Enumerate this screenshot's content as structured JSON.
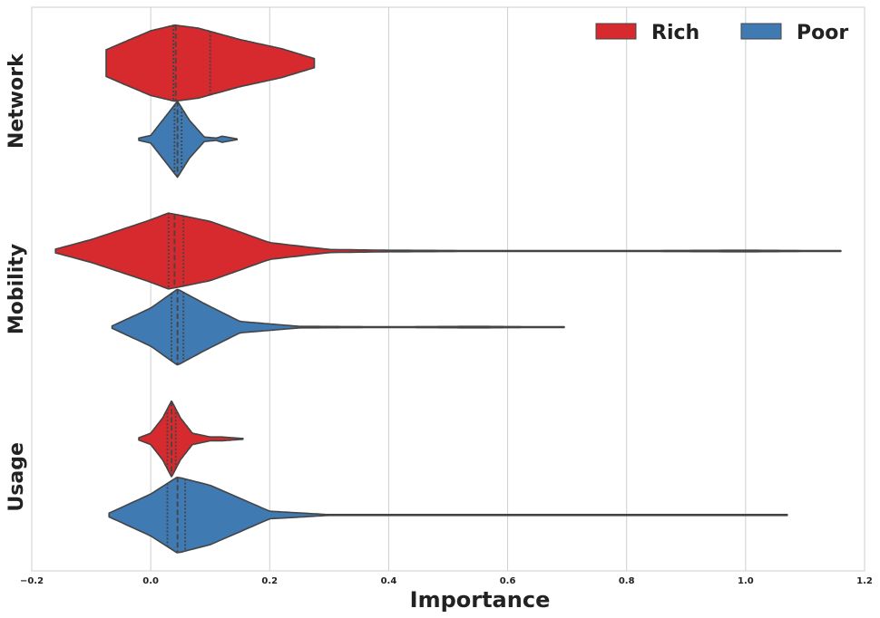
{
  "chart_data": {
    "type": "violin",
    "orientation": "horizontal",
    "xlabel": "Importance",
    "xlim": [
      -0.2,
      1.2
    ],
    "xticks": [
      -0.2,
      0.0,
      0.2,
      0.4,
      0.6,
      0.8,
      1.0,
      1.2
    ],
    "xtick_labels": [
      "−0.2",
      "0.0",
      "0.2",
      "0.4",
      "0.6",
      "0.8",
      "1.0",
      "1.2"
    ],
    "grid": "vertical",
    "legend_position": "top-right",
    "categories": [
      "Network",
      "Mobility",
      "Usage"
    ],
    "series": [
      {
        "name": "Rich",
        "color": "#d62a2e",
        "violins": [
          {
            "category": "Network",
            "min": -0.075,
            "max": 0.275,
            "q1": 0.038,
            "median": 0.042,
            "q3": 0.1,
            "profile": [
              [
                -0.075,
                0.35
              ],
              [
                -0.05,
                0.52
              ],
              [
                0.0,
                0.85
              ],
              [
                0.04,
                1.0
              ],
              [
                0.08,
                0.92
              ],
              [
                0.15,
                0.62
              ],
              [
                0.22,
                0.38
              ],
              [
                0.275,
                0.12
              ]
            ]
          },
          {
            "category": "Mobility",
            "min": -0.16,
            "max": 1.16,
            "q1": 0.03,
            "median": 0.04,
            "q3": 0.055,
            "profile": [
              [
                -0.16,
                0.05
              ],
              [
                -0.1,
                0.3
              ],
              [
                0.0,
                0.82
              ],
              [
                0.03,
                1.0
              ],
              [
                0.1,
                0.78
              ],
              [
                0.2,
                0.22
              ],
              [
                0.3,
                0.04
              ],
              [
                0.4,
                0.02
              ],
              [
                0.6,
                0.008
              ],
              [
                0.8,
                0.01
              ],
              [
                1.0,
                0.02
              ],
              [
                1.1,
                0.012
              ],
              [
                1.16,
                0.0
              ]
            ]
          },
          {
            "category": "Usage",
            "min": -0.02,
            "max": 0.155,
            "q1": 0.028,
            "median": 0.035,
            "q3": 0.042,
            "profile": [
              [
                -0.02,
                0.03
              ],
              [
                0.0,
                0.15
              ],
              [
                0.02,
                0.55
              ],
              [
                0.035,
                1.0
              ],
              [
                0.05,
                0.55
              ],
              [
                0.07,
                0.15
              ],
              [
                0.1,
                0.05
              ],
              [
                0.12,
                0.05
              ],
              [
                0.155,
                0.01
              ]
            ]
          }
        ]
      },
      {
        "name": "Poor",
        "color": "#3f7ab3",
        "violins": [
          {
            "category": "Network",
            "min": -0.02,
            "max": 0.145,
            "q1": 0.04,
            "median": 0.045,
            "q3": 0.052,
            "profile": [
              [
                -0.02,
                0.03
              ],
              [
                0.0,
                0.1
              ],
              [
                0.02,
                0.5
              ],
              [
                0.045,
                1.0
              ],
              [
                0.065,
                0.5
              ],
              [
                0.09,
                0.06
              ],
              [
                0.11,
                0.03
              ],
              [
                0.12,
                0.08
              ],
              [
                0.145,
                0.01
              ]
            ]
          },
          {
            "category": "Mobility",
            "min": -0.065,
            "max": 0.695,
            "q1": 0.035,
            "median": 0.045,
            "q3": 0.055,
            "profile": [
              [
                -0.065,
                0.03
              ],
              [
                0.0,
                0.5
              ],
              [
                0.045,
                1.0
              ],
              [
                0.09,
                0.62
              ],
              [
                0.15,
                0.15
              ],
              [
                0.25,
                0.02
              ],
              [
                0.4,
                0.01
              ],
              [
                0.55,
                0.02
              ],
              [
                0.65,
                0.01
              ],
              [
                0.695,
                0.0
              ]
            ]
          },
          {
            "category": "Usage",
            "min": -0.07,
            "max": 1.07,
            "q1": 0.028,
            "median": 0.045,
            "q3": 0.058,
            "profile": [
              [
                -0.07,
                0.05
              ],
              [
                0.0,
                0.55
              ],
              [
                0.045,
                1.0
              ],
              [
                0.1,
                0.78
              ],
              [
                0.2,
                0.1
              ],
              [
                0.3,
                0.01
              ],
              [
                0.6,
                0.005
              ],
              [
                0.95,
                0.01
              ],
              [
                1.0,
                0.012
              ],
              [
                1.07,
                0.0
              ]
            ]
          }
        ]
      }
    ]
  }
}
